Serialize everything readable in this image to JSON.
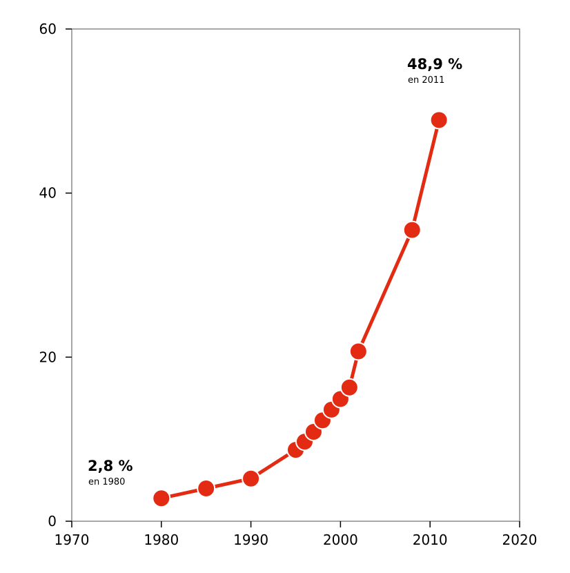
{
  "chart_data": {
    "type": "line",
    "title": "",
    "xlabel": "",
    "ylabel": "",
    "xlim": [
      1970,
      2020
    ],
    "ylim": [
      0,
      60
    ],
    "xticks": [
      "1970",
      "1980",
      "1990",
      "2000",
      "2010",
      "2020"
    ],
    "yticks": [
      "0",
      "20",
      "40",
      "60"
    ],
    "grid": false,
    "series_color": "#e22b12",
    "series": [
      {
        "points": [
          {
            "x": 1980,
            "y": 2.8
          },
          {
            "x": 1985,
            "y": 4.0
          },
          {
            "x": 1990,
            "y": 5.2
          },
          {
            "x": 1995,
            "y": 8.7
          },
          {
            "x": 1996,
            "y": 9.7
          },
          {
            "x": 1997,
            "y": 10.9
          },
          {
            "x": 1998,
            "y": 12.3
          },
          {
            "x": 1999,
            "y": 13.6
          },
          {
            "x": 2000,
            "y": 14.9
          },
          {
            "x": 2001,
            "y": 16.3
          },
          {
            "x": 2002,
            "y": 20.7
          },
          {
            "x": 2008,
            "y": 35.5
          },
          {
            "x": 2011,
            "y": 48.9
          }
        ]
      }
    ],
    "annotations": [
      {
        "value": "2,8 %",
        "sub": "en 1980",
        "x": 1980,
        "y": 2.8
      },
      {
        "value": "48,9 %",
        "sub": "en 2011",
        "x": 2011,
        "y": 48.9
      }
    ]
  }
}
